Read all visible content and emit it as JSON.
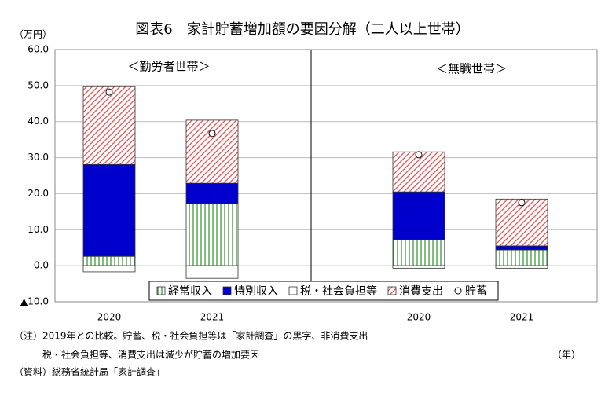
{
  "chart_data": {
    "type": "bar",
    "stacked": true,
    "title": "図表6　家計貯蓄増加額の要因分解（二人以上世帯）",
    "y_label": "（万円）",
    "x_label": "（年）",
    "groups": [
      "＜勤労者世帯＞",
      "＜無職世帯＞"
    ],
    "categories": [
      "2020",
      "2021",
      "2020",
      "2021"
    ],
    "series": [
      {
        "name": "経常収入",
        "color": "#3a9a3a",
        "pattern": "vertical",
        "values": [
          2.6,
          17.2,
          7.2,
          4.4
        ]
      },
      {
        "name": "特別収入",
        "color": "#0000cc",
        "pattern": "solid",
        "values": [
          25.5,
          5.7,
          13.3,
          1.1
        ]
      },
      {
        "name": "税・社会負担等",
        "color": "#ffffff",
        "pattern": "solid",
        "values": [
          -1.7,
          -3.5,
          -0.7,
          -0.7
        ]
      },
      {
        "name": "消費支出",
        "color": "#e05050",
        "pattern": "diagonal",
        "values": [
          21.6,
          17.5,
          11.1,
          13.0
        ]
      },
      {
        "name": "貯蓄",
        "color": "#ffffff",
        "type": "scatter",
        "values": [
          48.2,
          36.7,
          30.8,
          17.5
        ]
      }
    ],
    "ylim": [
      -10,
      60
    ],
    "yticks": [
      {
        "value": -10,
        "label": "▲10.0"
      },
      {
        "value": 0,
        "label": "0.0"
      },
      {
        "value": 10,
        "label": "10.0"
      },
      {
        "value": 20,
        "label": "20.0"
      },
      {
        "value": 30,
        "label": "30.0"
      },
      {
        "value": 40,
        "label": "40.0"
      },
      {
        "value": 50,
        "label": "50.0"
      },
      {
        "value": 60,
        "label": "60.0"
      }
    ],
    "grid": true,
    "notes": [
      "（注）2019年との比較。貯蓄、税・社会負担等は「家計調査」の黒字、非消費支出",
      "　　　税・社会負担等、消費支出は減少が貯蓄の増加要因",
      "（資料）総務省統計局「家計調査」"
    ]
  }
}
